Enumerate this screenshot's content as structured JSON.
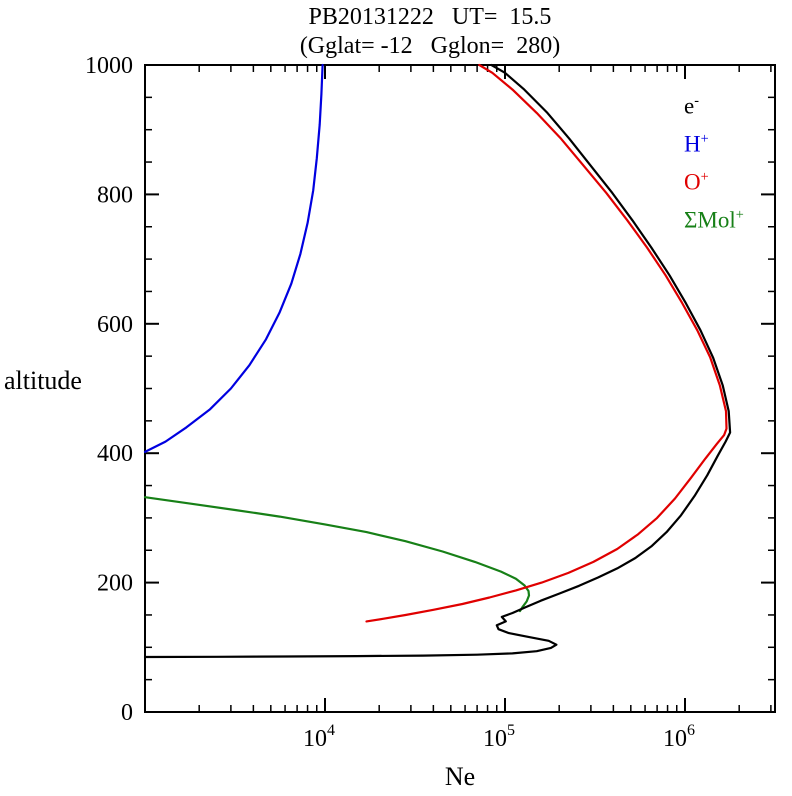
{
  "chart_data": {
    "type": "line",
    "title": "PB20131222   UT=  15.5",
    "subtitle": "(Gglat= -12   Gglon=  280)",
    "xlabel": "Ne",
    "ylabel": "altitude",
    "x_scale": "log",
    "x_range_log10": [
      3.0,
      6.5
    ],
    "x_major_tick_exponents": [
      4,
      5,
      6
    ],
    "ylim": [
      0,
      1000
    ],
    "y_major_ticks": [
      0,
      200,
      400,
      600,
      800,
      1000
    ],
    "y_minor_step": 50,
    "grid": false,
    "legend_position": "top-right",
    "series": [
      {
        "id": "electron",
        "label": "e",
        "sup": "-",
        "color": "#000000",
        "points": [
          [
            1000,
            85
          ],
          [
            2500,
            85.3
          ],
          [
            6000,
            85.8
          ],
          [
            15000,
            86.4
          ],
          [
            35000,
            87.2
          ],
          [
            70000,
            88.5
          ],
          [
            110000,
            90.5
          ],
          [
            150000,
            94
          ],
          [
            180000,
            99
          ],
          [
            193000,
            104
          ],
          [
            175000,
            110
          ],
          [
            135000,
            116
          ],
          [
            105000,
            122
          ],
          [
            92000,
            128
          ],
          [
            90000,
            134
          ],
          [
            101000,
            140
          ],
          [
            96000,
            147
          ],
          [
            110000,
            153
          ],
          [
            130000,
            162
          ],
          [
            158000,
            172
          ],
          [
            200000,
            183
          ],
          [
            258000,
            195
          ],
          [
            330000,
            208
          ],
          [
            420000,
            222
          ],
          [
            530000,
            238
          ],
          [
            650000,
            256
          ],
          [
            790000,
            278
          ],
          [
            950000,
            304
          ],
          [
            1130000,
            334
          ],
          [
            1330000,
            366
          ],
          [
            1520000,
            396
          ],
          [
            1680000,
            418
          ],
          [
            1780000,
            432
          ],
          [
            1750000,
            465
          ],
          [
            1620000,
            505
          ],
          [
            1430000,
            548
          ],
          [
            1220000,
            590
          ],
          [
            1010000,
            632
          ],
          [
            820000,
            675
          ],
          [
            650000,
            718
          ],
          [
            510000,
            760
          ],
          [
            395000,
            802
          ],
          [
            300000,
            844
          ],
          [
            228000,
            886
          ],
          [
            172000,
            926
          ],
          [
            128000,
            962
          ],
          [
            100000,
            988
          ],
          [
            84000,
            1000
          ]
        ]
      },
      {
        "id": "h-plus",
        "label": "H",
        "sup": "+",
        "color": "#0000e0",
        "points": [
          [
            1000,
            402
          ],
          [
            1300,
            418
          ],
          [
            1700,
            440
          ],
          [
            2300,
            468
          ],
          [
            3000,
            500
          ],
          [
            3800,
            536
          ],
          [
            4700,
            576
          ],
          [
            5600,
            618
          ],
          [
            6500,
            662
          ],
          [
            7300,
            708
          ],
          [
            8000,
            756
          ],
          [
            8600,
            806
          ],
          [
            9000,
            856
          ],
          [
            9350,
            908
          ],
          [
            9550,
            955
          ],
          [
            9700,
            1000
          ]
        ]
      },
      {
        "id": "o-plus",
        "label": "O",
        "sup": "+",
        "color": "#e00000",
        "points": [
          [
            17000,
            140
          ],
          [
            21000,
            144
          ],
          [
            28000,
            150
          ],
          [
            40000,
            158
          ],
          [
            58000,
            167
          ],
          [
            82000,
            177
          ],
          [
            115000,
            188
          ],
          [
            160000,
            200
          ],
          [
            225000,
            215
          ],
          [
            310000,
            232
          ],
          [
            420000,
            252
          ],
          [
            550000,
            275
          ],
          [
            700000,
            300
          ],
          [
            880000,
            330
          ],
          [
            1080000,
            362
          ],
          [
            1300000,
            392
          ],
          [
            1500000,
            414
          ],
          [
            1650000,
            428
          ],
          [
            1700000,
            438
          ],
          [
            1690000,
            465
          ],
          [
            1560000,
            505
          ],
          [
            1380000,
            548
          ],
          [
            1170000,
            590
          ],
          [
            965000,
            632
          ],
          [
            780000,
            675
          ],
          [
            615000,
            718
          ],
          [
            478000,
            760
          ],
          [
            366000,
            802
          ],
          [
            274000,
            844
          ],
          [
            205000,
            886
          ],
          [
            150000,
            926
          ],
          [
            110000,
            962
          ],
          [
            85000,
            988
          ],
          [
            72000,
            1000
          ]
        ]
      },
      {
        "id": "mol-plus",
        "label": "ΣMol",
        "sup": "+",
        "color": "#178017",
        "points": [
          [
            1000,
            332
          ],
          [
            1800,
            322
          ],
          [
            3200,
            312
          ],
          [
            5600,
            302
          ],
          [
            10000,
            290
          ],
          [
            17000,
            278
          ],
          [
            28000,
            264
          ],
          [
            45000,
            248
          ],
          [
            68000,
            232
          ],
          [
            95000,
            217
          ],
          [
            115000,
            206
          ],
          [
            128000,
            196
          ],
          [
            135000,
            187
          ],
          [
            136000,
            180
          ],
          [
            132000,
            171
          ],
          [
            125000,
            162
          ],
          [
            121000,
            156
          ]
        ]
      }
    ]
  }
}
